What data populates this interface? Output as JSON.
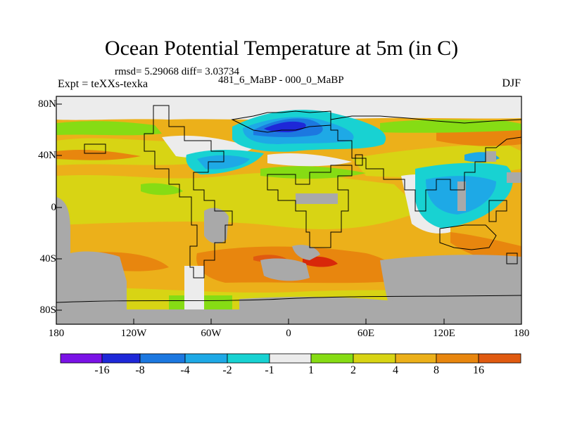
{
  "title": "Ocean Potential Temperature at 5m (in C)",
  "stats_line": "rmsd= 5.29068 diff= 3.03734",
  "experiment_line": "Expt = teXXs-texka",
  "comparison_line": "481_6_MaBP - 000_0_MaBP",
  "season": "DJF",
  "y_axis_labels": [
    "80N",
    "40N",
    "0",
    "40S",
    "80S"
  ],
  "x_axis_labels": [
    "180",
    "120W",
    "60W",
    "0",
    "60E",
    "120E",
    "180"
  ],
  "colorbar": {
    "labels": [
      "-16",
      "-8",
      "-4",
      "-2",
      "-1",
      "1",
      "2",
      "4",
      "8",
      "16"
    ],
    "colors": [
      "#7a12e6",
      "#1e28d8",
      "#1c78e0",
      "#1ea9e6",
      "#18d2d2",
      "#ececec",
      "#86dc14",
      "#d8d414",
      "#ecb01a",
      "#e8860e",
      "#e05a10",
      "#d8280a"
    ]
  },
  "palette": {
    "land": "#a9a9a9",
    "ice": "#e8e8e8",
    "coast": "#000000"
  }
}
